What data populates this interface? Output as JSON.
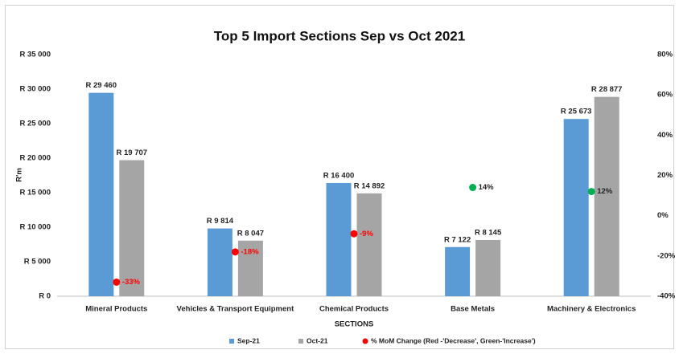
{
  "chart_data": {
    "type": "bar",
    "title": "Top 5 Import Sections Sep vs Oct 2021",
    "y_label": "R'm",
    "x_label": "SECTIONS",
    "categories": [
      "Mineral Products",
      "Vehicles & Transport Equipment",
      "Chemical Products",
      "Base Metals",
      "Machinery & Electronics"
    ],
    "series": [
      {
        "name": "Sep-21",
        "color": "#5b9bd5",
        "values": [
          29460,
          9814,
          16400,
          7122,
          25673
        ],
        "value_labels": [
          "R 29 460",
          "R 9 814",
          "R 16 400",
          "R 7 122",
          "R 25 673"
        ]
      },
      {
        "name": "Oct-21",
        "color": "#a5a5a5",
        "values": [
          19707,
          8047,
          14892,
          8145,
          28877
        ],
        "value_labels": [
          "R 19 707",
          "R 8 047",
          "R 14 892",
          "R 8 145",
          "R 28 877"
        ]
      },
      {
        "name": "% MoM Change (Red -'Decrease', Green-'Increase')",
        "type": "scatter",
        "axis": "y2",
        "color": "#ff0000",
        "values": [
          -33,
          -18,
          -9,
          14,
          12
        ],
        "value_labels": [
          "-33%",
          "-18%",
          "-9%",
          "14%",
          "12%"
        ],
        "point_colors": [
          "#ff0000",
          "#ff0000",
          "#ff0000",
          "#00b050",
          "#00b050"
        ],
        "label_colors": [
          "#ff0000",
          "#ff0000",
          "#ff0000",
          "#222222",
          "#222222"
        ]
      }
    ],
    "ylim": [
      0,
      35000
    ],
    "yticks": [
      {
        "value": 0,
        "label": "R 0"
      },
      {
        "value": 5000,
        "label": "R 5 000"
      },
      {
        "value": 10000,
        "label": "R 10 000"
      },
      {
        "value": 15000,
        "label": "R 15 000"
      },
      {
        "value": 20000,
        "label": "R 20 000"
      },
      {
        "value": 25000,
        "label": "R 25 000"
      },
      {
        "value": 30000,
        "label": "R 30 000"
      },
      {
        "value": 35000,
        "label": "R 35 000"
      }
    ],
    "y2lim": [
      -40,
      80
    ],
    "y2ticks": [
      {
        "value": -40,
        "label": "-40%"
      },
      {
        "value": -20,
        "label": "-20%"
      },
      {
        "value": 0,
        "label": "0%"
      },
      {
        "value": 20,
        "label": "20%"
      },
      {
        "value": 40,
        "label": "40%"
      },
      {
        "value": 60,
        "label": "60%"
      },
      {
        "value": 80,
        "label": "80%"
      }
    ],
    "grid": false,
    "legend": "bottom"
  }
}
